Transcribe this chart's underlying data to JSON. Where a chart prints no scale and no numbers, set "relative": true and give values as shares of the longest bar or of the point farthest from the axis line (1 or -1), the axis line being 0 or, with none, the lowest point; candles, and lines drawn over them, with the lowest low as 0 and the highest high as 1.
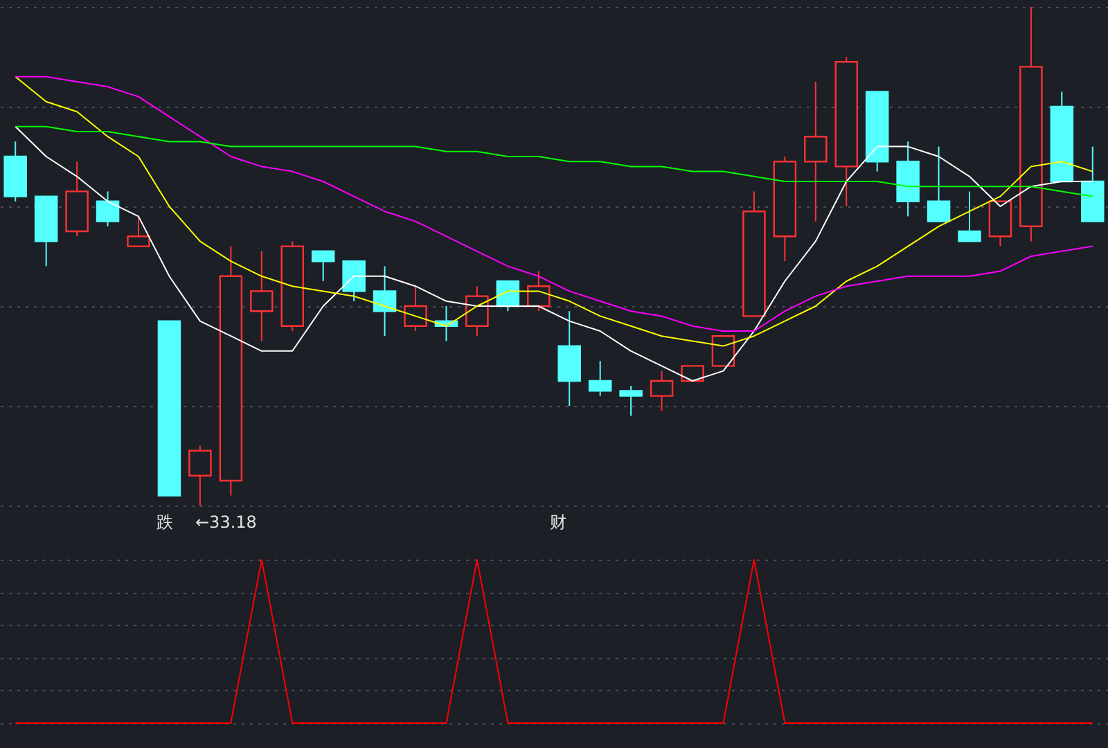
{
  "chart_data": [
    {
      "type": "candlestick",
      "relative": true,
      "grid": true,
      "categories": [
        null,
        null,
        null,
        null,
        null,
        null,
        null,
        null,
        null,
        null,
        null,
        null,
        null,
        null,
        null,
        null,
        null,
        null,
        null,
        null,
        null,
        null,
        null,
        null,
        null,
        null,
        null,
        null,
        null,
        null,
        null,
        null,
        null,
        null,
        null,
        null
      ],
      "ohlc": [
        [
          0.7,
          0.73,
          0.61,
          0.62
        ],
        [
          0.62,
          0.62,
          0.48,
          0.53
        ],
        [
          0.55,
          0.69,
          0.54,
          0.63
        ],
        [
          0.61,
          0.63,
          0.56,
          0.57
        ],
        [
          0.52,
          0.58,
          0.52,
          0.54
        ],
        [
          0.37,
          0.37,
          0.02,
          0.02
        ],
        [
          0.06,
          0.12,
          0,
          0.11
        ],
        [
          0.05,
          0.52,
          0.02,
          0.46
        ],
        [
          0.39,
          0.51,
          0.33,
          0.43
        ],
        [
          0.36,
          0.53,
          0.35,
          0.52
        ],
        [
          0.51,
          0.51,
          0.45,
          0.49
        ],
        [
          0.49,
          0.49,
          0.41,
          0.43
        ],
        [
          0.43,
          0.48,
          0.34,
          0.39
        ],
        [
          0.36,
          0.44,
          0.35,
          0.4
        ],
        [
          0.37,
          0.4,
          0.33,
          0.36
        ],
        [
          0.36,
          0.44,
          0.34,
          0.42
        ],
        [
          0.45,
          0.45,
          0.39,
          0.4
        ],
        [
          0.4,
          0.47,
          0.39,
          0.44
        ],
        [
          0.32,
          0.39,
          0.2,
          0.25
        ],
        [
          0.25,
          0.29,
          0.22,
          0.23
        ],
        [
          0.23,
          0.24,
          0.18,
          0.22
        ],
        [
          0.22,
          0.27,
          0.19,
          0.25
        ],
        [
          0.25,
          0.28,
          0.25,
          0.28
        ],
        [
          0.28,
          0.34,
          0.28,
          0.34
        ],
        [
          0.38,
          0.63,
          0.38,
          0.59
        ],
        [
          0.54,
          0.7,
          0.49,
          0.69
        ],
        [
          0.69,
          0.85,
          0.57,
          0.74
        ],
        [
          0.68,
          0.9,
          0.6,
          0.89
        ],
        [
          0.83,
          0.83,
          0.67,
          0.69
        ],
        [
          0.69,
          0.73,
          0.58,
          0.61
        ],
        [
          0.61,
          0.72,
          0.57,
          0.57
        ],
        [
          0.55,
          0.63,
          0.53,
          0.53
        ],
        [
          0.54,
          0.61,
          0.52,
          0.61
        ],
        [
          0.56,
          1.0,
          0.53,
          0.88
        ],
        [
          0.8,
          0.83,
          0.65,
          0.65
        ],
        [
          0.65,
          0.72,
          0.57,
          0.57
        ]
      ],
      "colors": [
        "#54ffff",
        "#54ffff",
        "#ff3232",
        "#54ffff",
        "#ff3232",
        "#54ffff",
        "#ff3232",
        "#ff3232",
        "#ff3232",
        "#ff3232",
        "#54ffff",
        "#54ffff",
        "#54ffff",
        "#ff3232",
        "#54ffff",
        "#ff3232",
        "#54ffff",
        "#ff3232",
        "#54ffff",
        "#54ffff",
        "#54ffff",
        "#ff3232",
        "#ff3232",
        "#ff3232",
        "#ff3232",
        "#ff3232",
        "#ff3232",
        "#ff3232",
        "#54ffff",
        "#54ffff",
        "#54ffff",
        "#54ffff",
        "#ff3232",
        "#ff3232",
        "#54ffff",
        "#54ffff"
      ],
      "series": [
        {
          "type": "line",
          "color": "#ffffff",
          "values": [
            0.76,
            0.7,
            0.66,
            0.61,
            0.58,
            0.46,
            0.37,
            0.34,
            0.31,
            0.31,
            0.4,
            0.46,
            0.46,
            0.44,
            0.41,
            0.4,
            0.4,
            0.4,
            0.37,
            0.35,
            0.31,
            0.28,
            0.25,
            0.27,
            0.35,
            0.45,
            0.53,
            0.65,
            0.72,
            0.72,
            0.7,
            0.66,
            0.6,
            0.64,
            0.65,
            0.65
          ]
        },
        {
          "type": "line",
          "color": "#ffff00",
          "values": [
            0.86,
            0.81,
            0.79,
            0.74,
            0.7,
            0.6,
            0.53,
            0.49,
            0.46,
            0.44,
            0.43,
            0.42,
            0.4,
            0.38,
            0.36,
            0.4,
            0.43,
            0.43,
            0.41,
            0.38,
            0.36,
            0.34,
            0.33,
            0.32,
            0.34,
            0.37,
            0.4,
            0.45,
            0.48,
            0.52,
            0.56,
            0.59,
            0.62,
            0.68,
            0.69,
            0.67
          ]
        },
        {
          "type": "line",
          "color": "#ff00ff",
          "values": [
            0.86,
            0.86,
            0.85,
            0.84,
            0.82,
            0.78,
            0.74,
            0.7,
            0.68,
            0.67,
            0.65,
            0.62,
            0.59,
            0.57,
            0.54,
            0.51,
            0.48,
            0.46,
            0.43,
            0.41,
            0.39,
            0.38,
            0.36,
            0.35,
            0.35,
            0.39,
            0.42,
            0.44,
            0.45,
            0.46,
            0.46,
            0.46,
            0.47,
            0.5,
            0.51,
            0.52
          ]
        },
        {
          "type": "line",
          "color": "#00ff00",
          "values": [
            0.76,
            0.76,
            0.75,
            0.75,
            0.74,
            0.73,
            0.73,
            0.72,
            0.72,
            0.72,
            0.72,
            0.72,
            0.72,
            0.72,
            0.71,
            0.71,
            0.7,
            0.7,
            0.69,
            0.69,
            0.68,
            0.68,
            0.67,
            0.67,
            0.66,
            0.65,
            0.65,
            0.65,
            0.65,
            0.64,
            0.64,
            0.64,
            0.64,
            0.64,
            0.63,
            0.62
          ]
        }
      ],
      "annotations": [
        "←33.18",
        "跌",
        "财"
      ]
    },
    {
      "type": "line",
      "relative": true,
      "grid": true,
      "categories": [
        null,
        null,
        null,
        null,
        null,
        null,
        null,
        null,
        null,
        null,
        null,
        null,
        null,
        null,
        null,
        null,
        null,
        null,
        null,
        null,
        null,
        null,
        null,
        null,
        null,
        null,
        null,
        null,
        null,
        null,
        null,
        null,
        null,
        null,
        null,
        null
      ],
      "series": [
        {
          "color": "#ff0000",
          "values": [
            0,
            0,
            0,
            0,
            0,
            0,
            0,
            0,
            1,
            0,
            0,
            0,
            0,
            0,
            0,
            1,
            0,
            0,
            0,
            0,
            0,
            0,
            0,
            0,
            1,
            0,
            0,
            0,
            0,
            0,
            0,
            0,
            0,
            0,
            0,
            0
          ]
        }
      ]
    }
  ]
}
